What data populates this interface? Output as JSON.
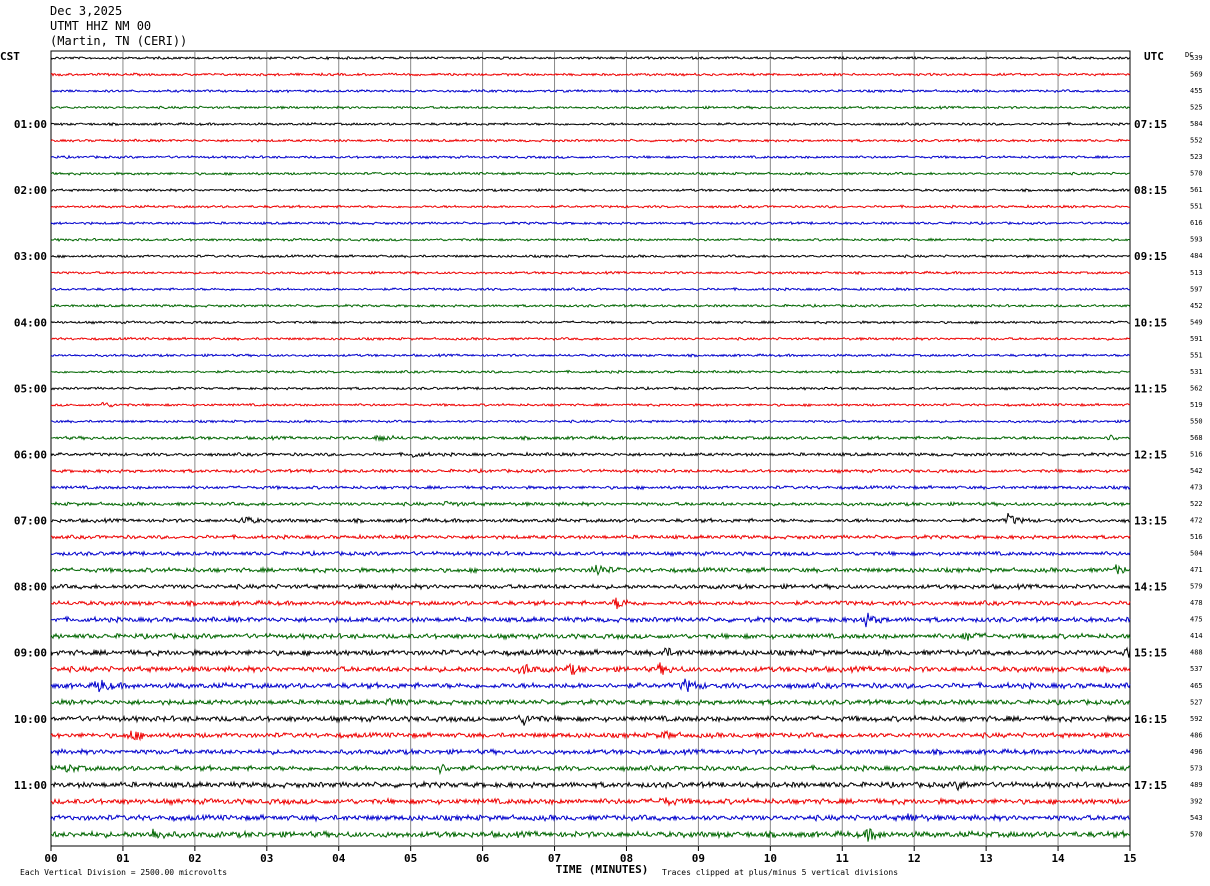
{
  "header": {
    "date": "Dec 3,2025",
    "station": "UTMT HHZ NM 00",
    "location": "(Martin, TN (CERI))"
  },
  "labels": {
    "left_tz": "CST",
    "right_tz": "UTC",
    "dc": "DC",
    "xlabel": "TIME (MINUTES)",
    "scale_note": "Each Vertical Division = 2500.00 microvolts",
    "clip_note": "Traces clipped at plus/minus 5 vertical divisions"
  },
  "colors": {
    "trace_cycle": [
      "#000000",
      "#ee0000",
      "#0000cc",
      "#006600"
    ],
    "grid": "#888888"
  },
  "chart_data": {
    "type": "line",
    "title": "UTMT HHZ NM 00",
    "xlabel": "TIME (MINUTES)",
    "x_range": [
      0,
      15
    ],
    "x_ticks": [
      "00",
      "01",
      "02",
      "03",
      "04",
      "05",
      "06",
      "07",
      "08",
      "09",
      "10",
      "11",
      "12",
      "13",
      "14",
      "15"
    ],
    "left_hour_labels": [
      {
        "row": 4,
        "label": "01:00"
      },
      {
        "row": 8,
        "label": "02:00"
      },
      {
        "row": 12,
        "label": "03:00"
      },
      {
        "row": 16,
        "label": "04:00"
      },
      {
        "row": 20,
        "label": "05:00"
      },
      {
        "row": 24,
        "label": "06:00"
      },
      {
        "row": 28,
        "label": "07:00"
      },
      {
        "row": 32,
        "label": "08:00"
      },
      {
        "row": 36,
        "label": "09:00"
      },
      {
        "row": 40,
        "label": "10:00"
      },
      {
        "row": 44,
        "label": "11:00"
      }
    ],
    "right_hour_labels": [
      {
        "row": 4,
        "label": "07:15"
      },
      {
        "row": 8,
        "label": "08:15"
      },
      {
        "row": 12,
        "label": "09:15"
      },
      {
        "row": 16,
        "label": "10:15"
      },
      {
        "row": 20,
        "label": "11:15"
      },
      {
        "row": 24,
        "label": "12:15"
      },
      {
        "row": 28,
        "label": "13:15"
      },
      {
        "row": 32,
        "label": "14:15"
      },
      {
        "row": 36,
        "label": "15:15"
      },
      {
        "row": 40,
        "label": "16:15"
      },
      {
        "row": 44,
        "label": "17:15"
      }
    ],
    "dc_offsets": [
      "539",
      "569",
      "455",
      "525",
      "584",
      "552",
      "523",
      "570",
      "561",
      "551",
      "616",
      "593",
      "484",
      "513",
      "597",
      "452",
      "549",
      "591",
      "551",
      "531",
      "562",
      "519",
      "550",
      "568",
      "516",
      "542",
      "473",
      "522",
      "472",
      "516",
      "504",
      "471",
      "579",
      "478",
      "475",
      "414",
      "488",
      "537",
      "465",
      "527",
      "592",
      "486",
      "496",
      "573",
      "489",
      "392",
      "543",
      "570"
    ],
    "noise_levels": [
      1,
      1,
      1,
      1,
      1,
      1,
      1,
      1,
      1,
      1,
      1,
      1,
      1,
      1,
      1,
      1,
      1,
      1,
      1,
      1,
      1,
      1,
      1,
      1.3,
      1.3,
      1.3,
      1.3,
      1.4,
      1.5,
      1.5,
      1.6,
      1.8,
      1.8,
      1.8,
      2,
      2,
      2.2,
      2.2,
      2.2,
      2,
      2.2,
      2,
      2,
      2,
      2.2,
      2.2,
      2.2,
      2.4
    ],
    "events": [
      {
        "row": 21,
        "minute": 0.7,
        "amp": 3
      },
      {
        "row": 23,
        "minute": 4.55,
        "amp": 4
      },
      {
        "row": 23,
        "minute": 14.7,
        "amp": 3
      },
      {
        "row": 24,
        "minute": 5.0,
        "amp": 3
      },
      {
        "row": 27,
        "minute": 5.5,
        "amp": 3
      },
      {
        "row": 28,
        "minute": 2.65,
        "amp": 5
      },
      {
        "row": 28,
        "minute": 13.3,
        "amp": 6
      },
      {
        "row": 31,
        "minute": 7.55,
        "amp": 8
      },
      {
        "row": 31,
        "minute": 14.8,
        "amp": 4
      },
      {
        "row": 33,
        "minute": 7.85,
        "amp": 6
      },
      {
        "row": 34,
        "minute": 11.3,
        "amp": 8
      },
      {
        "row": 35,
        "minute": 12.7,
        "amp": 5
      },
      {
        "row": 36,
        "minute": 8.5,
        "amp": 5
      },
      {
        "row": 36,
        "minute": 14.95,
        "amp": 8
      },
      {
        "row": 37,
        "minute": 6.55,
        "amp": 6
      },
      {
        "row": 37,
        "minute": 7.2,
        "amp": 5
      },
      {
        "row": 37,
        "minute": 8.45,
        "amp": 5
      },
      {
        "row": 38,
        "minute": 0.65,
        "amp": 7
      },
      {
        "row": 38,
        "minute": 8.8,
        "amp": 7
      },
      {
        "row": 39,
        "minute": 4.7,
        "amp": 4
      },
      {
        "row": 40,
        "minute": 6.55,
        "amp": 6
      },
      {
        "row": 41,
        "minute": 1.1,
        "amp": 6
      },
      {
        "row": 41,
        "minute": 8.5,
        "amp": 4
      },
      {
        "row": 43,
        "minute": 0.2,
        "amp": 4
      },
      {
        "row": 43,
        "minute": 5.4,
        "amp": 4
      },
      {
        "row": 44,
        "minute": 12.6,
        "amp": 4
      },
      {
        "row": 45,
        "minute": 8.5,
        "amp": 4
      },
      {
        "row": 46,
        "minute": 11.9,
        "amp": 4
      },
      {
        "row": 47,
        "minute": 1.4,
        "amp": 6
      },
      {
        "row": 47,
        "minute": 11.35,
        "amp": 6
      }
    ]
  }
}
